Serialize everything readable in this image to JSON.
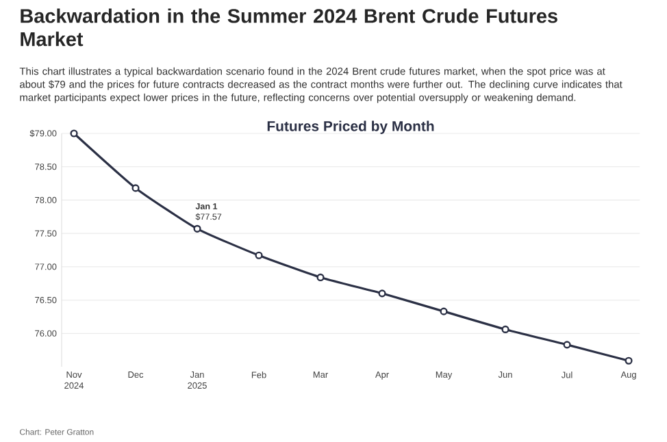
{
  "chart_data": {
    "type": "line",
    "title": "Backwardation in the Summer 2024 Brent Crude Futures Market",
    "subtitle": "This chart illustrates a typical backwardation scenario found in the 2024 Brent crude futures market, when the spot price was at about $79 and the prices for future contracts decreased as the contract months were further out. The declining curve indicates that market participants expect lower prices in the future, reflecting concerns over potential oversupply or weakening demand.",
    "categories": [
      "Nov 2024",
      "Dec",
      "Jan 2025",
      "Feb",
      "Mar",
      "Apr",
      "May",
      "Jun",
      "Jul",
      "Aug"
    ],
    "series": [
      {
        "name": "Futures Priced by Month",
        "color": "#2b3045",
        "values": [
          79.0,
          78.18,
          77.57,
          77.17,
          76.84,
          76.6,
          76.33,
          76.06,
          75.83,
          75.59
        ]
      }
    ],
    "ylim": [
      75.5,
      79.0
    ],
    "yticks": [
      {
        "value": 76,
        "label": "76.00"
      },
      {
        "value": 76.5,
        "label": "76.50"
      },
      {
        "value": 77,
        "label": "77.00"
      },
      {
        "value": 77.5,
        "label": "77.50"
      },
      {
        "value": 78,
        "label": "78.00"
      },
      {
        "value": 78.5,
        "label": "78.50"
      },
      {
        "value": 79,
        "label": "$79.00"
      }
    ],
    "grid": "y",
    "marker": "circle",
    "line_style": "solid",
    "legend": false,
    "annotations": [
      {
        "text": "Jan 1",
        "x": "Jan 2025",
        "y": 77.57
      },
      {
        "text": "$77.57",
        "x": "Jan 2025",
        "y": 77.57
      },
      "Chart: Peter Gratton"
    ]
  }
}
